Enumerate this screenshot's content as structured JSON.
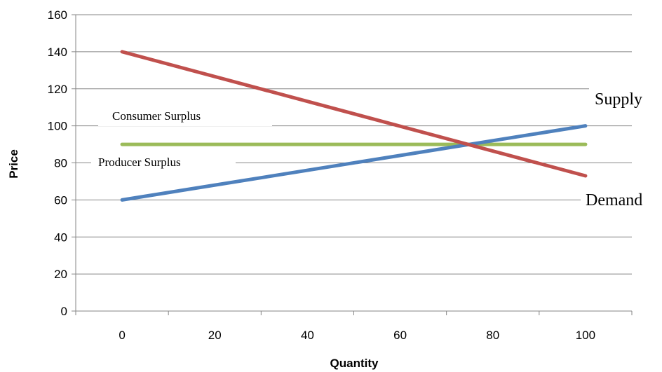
{
  "chart_data": {
    "type": "line",
    "xlabel": "Quantity",
    "ylabel": "Price",
    "xlim": [
      -10,
      110
    ],
    "ylim": [
      0,
      160
    ],
    "x_ticks": [
      0,
      20,
      40,
      60,
      80,
      100
    ],
    "y_ticks": [
      0,
      20,
      40,
      60,
      80,
      100,
      120,
      140,
      160
    ],
    "grid": "horizontal",
    "legend": "none",
    "series": [
      {
        "name": "Demand",
        "color": "#c0504d",
        "x": [
          0,
          100
        ],
        "y": [
          140,
          73
        ]
      },
      {
        "name": "Supply",
        "color": "#4f81bd",
        "x": [
          0,
          100
        ],
        "y": [
          60,
          100
        ]
      },
      {
        "name": "",
        "color": "#9bbb59",
        "x": [
          0,
          100
        ],
        "y": [
          90,
          90
        ]
      }
    ],
    "annotations": [
      {
        "text": "Consumer Surplus",
        "key": "consumer"
      },
      {
        "text": "Producer Surplus",
        "key": "producer"
      },
      {
        "text": "Supply",
        "key": "supply"
      },
      {
        "text": "Demand",
        "key": "demand"
      }
    ]
  }
}
